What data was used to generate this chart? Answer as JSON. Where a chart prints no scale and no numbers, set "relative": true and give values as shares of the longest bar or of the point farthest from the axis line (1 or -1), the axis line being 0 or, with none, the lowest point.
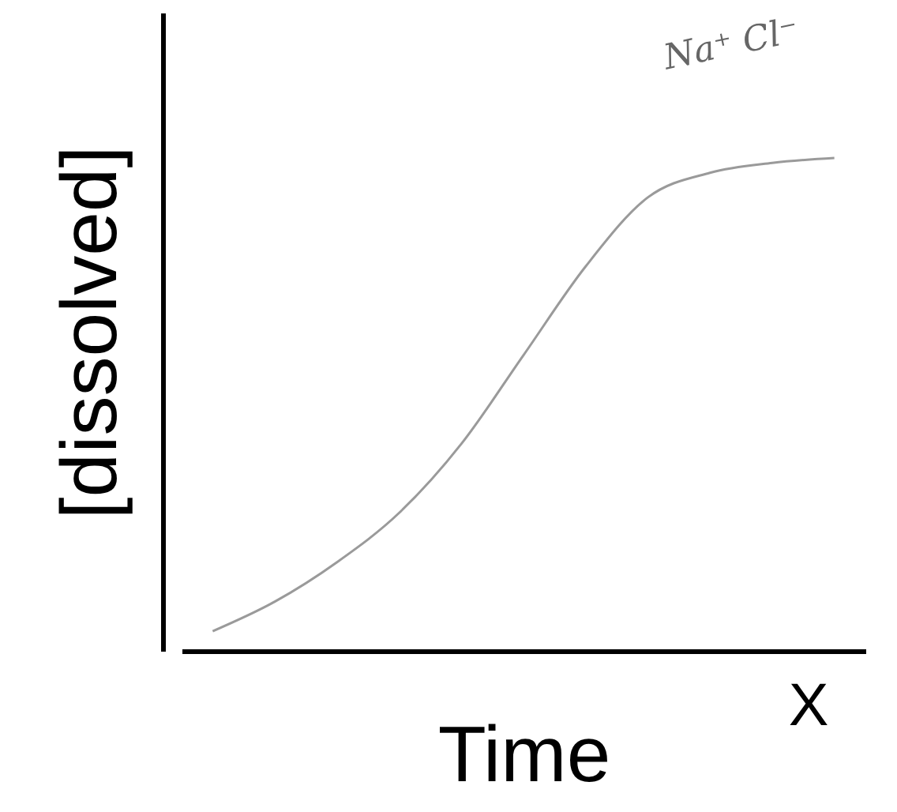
{
  "chart_data": {
    "type": "line",
    "xlabel": "Time",
    "ylabel": "[dissolved]",
    "relative": true,
    "categories": [
      null,
      null,
      null,
      null,
      null,
      null,
      null,
      null,
      null,
      null,
      null
    ],
    "values": [
      0.04,
      0.1,
      0.18,
      0.28,
      0.42,
      0.6,
      0.78,
      0.92,
      0.97,
      0.99,
      1
    ],
    "color": "#9a9a9a",
    "annotations": [
      "Na⁺ Cl⁻",
      "X"
    ]
  }
}
